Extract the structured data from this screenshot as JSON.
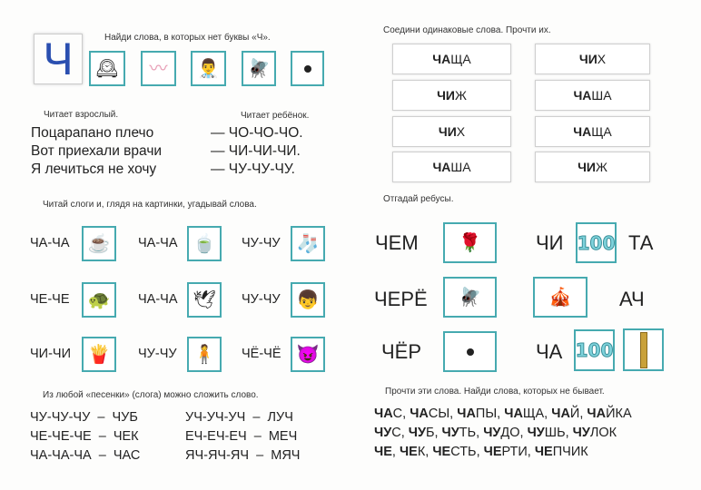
{
  "left": {
    "big_letter": "Ч",
    "big_letter_color": "#2a4fb0",
    "task1": "Найди слова, в которых нет буквы «Ч».",
    "task1_pictures": [
      "clock-icon",
      "worm-icon",
      "doctor-icon",
      "fly-icon",
      "dot-icon"
    ],
    "adult_label": "Читает взрослый.",
    "child_label": "Читает ребёнок.",
    "poem": [
      {
        "adult": "Поцарапано плечо",
        "child": "— ЧО-ЧО-ЧО."
      },
      {
        "adult": "Вот приехали врачи",
        "child": "— ЧИ-ЧИ-ЧИ."
      },
      {
        "adult": "Я лечиться не хочу",
        "child": "— ЧУ-ЧУ-ЧУ."
      }
    ],
    "task2": "Читай слоги и, глядя на картинки, угадывай слова.",
    "syllables": [
      [
        {
          "text": "ЧА-ЧА",
          "icon": "tea-glass-icon",
          "glyph": "☕"
        },
        {
          "text": "ЧА-ЧА",
          "icon": "cup-icon",
          "glyph": "🍵"
        },
        {
          "text": "ЧУ-ЧУ",
          "icon": "stocking-icon",
          "glyph": "🧦"
        }
      ],
      [
        {
          "text": "ЧЕ-ЧЕ",
          "icon": "turtle-icon",
          "glyph": "🐢"
        },
        {
          "text": "ЧА-ЧА",
          "icon": "seagull-icon",
          "glyph": "🕊"
        },
        {
          "text": "ЧУ-ЧУ",
          "icon": "forelock-icon",
          "glyph": "👦"
        }
      ],
      [
        {
          "text": "ЧИ-ЧИ",
          "icon": "chips-icon",
          "glyph": "🍟"
        },
        {
          "text": "ЧУ-ЧУ",
          "icon": "scarecrow-icon",
          "glyph": "🧍"
        },
        {
          "text": "ЧЁ-ЧЁ",
          "icon": "devil-icon",
          "glyph": "😈"
        }
      ]
    ],
    "task3": "Из любой «песенки» (слога) можно сложить слово.",
    "songs_left": [
      "ЧУ-ЧУ-ЧУ  –  ЧУБ",
      "ЧЕ-ЧЕ-ЧЕ  –  ЧЕК",
      "ЧА-ЧА-ЧА  –  ЧАС"
    ],
    "songs_right": [
      "УЧ-УЧ-УЧ  –  ЛУЧ",
      "ЕЧ-ЕЧ-ЕЧ  –  МЕЧ",
      "ЯЧ-ЯЧ-ЯЧ  –  МЯЧ"
    ]
  },
  "right": {
    "task4": "Соедини одинаковые слова. Прочти их.",
    "match_left": [
      {
        "b": "ЧА",
        "r": "ЩА"
      },
      {
        "b": "ЧИ",
        "r": "Ж"
      },
      {
        "b": "ЧИ",
        "r": "Х"
      },
      {
        "b": "ЧА",
        "r": "ША"
      }
    ],
    "match_right": [
      {
        "b": "ЧИ",
        "r": "Х"
      },
      {
        "b": "ЧА",
        "r": "ША"
      },
      {
        "b": "ЧА",
        "r": "ЩА"
      },
      {
        "b": "ЧИ",
        "r": "Ж"
      }
    ],
    "task5": "Отгадай ребусы.",
    "rebus": {
      "r1_left": "ЧЕМ",
      "r1_icon": "rose-icon",
      "r1_right_pre": "ЧИ",
      "r1_number": "100",
      "r1_right_post": "ТА",
      "r2_left": "ЧЕРЁ",
      "r2_icon": "fly-icon",
      "r2_icon_right": "circus-tent-icon",
      "r2_right_post": "АЧ",
      "r3_left": "ЧЁР",
      "r3_icon": "dot-icon",
      "r3_right_pre": "ЧА",
      "r3_number": "100",
      "r3_icon2": "tower-icon"
    },
    "task6": "Прочти эти слова. Найди слова, которых не бывает.",
    "word_lines": [
      [
        {
          "b": "ЧА",
          "r": "С, "
        },
        {
          "b": "ЧА",
          "r": "СЫ, "
        },
        {
          "b": "ЧА",
          "r": "ПЫ, "
        },
        {
          "b": "ЧА",
          "r": "ЩА, "
        },
        {
          "b": "ЧА",
          "r": "Й, "
        },
        {
          "b": "ЧА",
          "r": "ЙКА"
        }
      ],
      [
        {
          "b": "ЧУ",
          "r": "С, "
        },
        {
          "b": "ЧУ",
          "r": "Б, "
        },
        {
          "b": "ЧУ",
          "r": "ТЬ, "
        },
        {
          "b": "ЧУ",
          "r": "ДО, "
        },
        {
          "b": "ЧУ",
          "r": "ШЬ, "
        },
        {
          "b": "ЧУ",
          "r": "ЛОК"
        }
      ],
      [
        {
          "b": "ЧЕ",
          "r": ", "
        },
        {
          "b": "ЧЕ",
          "r": "К, "
        },
        {
          "b": "ЧЕ",
          "r": "СТЬ, "
        },
        {
          "b": "ЧЕ",
          "r": "РТИ, "
        },
        {
          "b": "ЧЕ",
          "r": "ПЧИК"
        }
      ]
    ]
  }
}
